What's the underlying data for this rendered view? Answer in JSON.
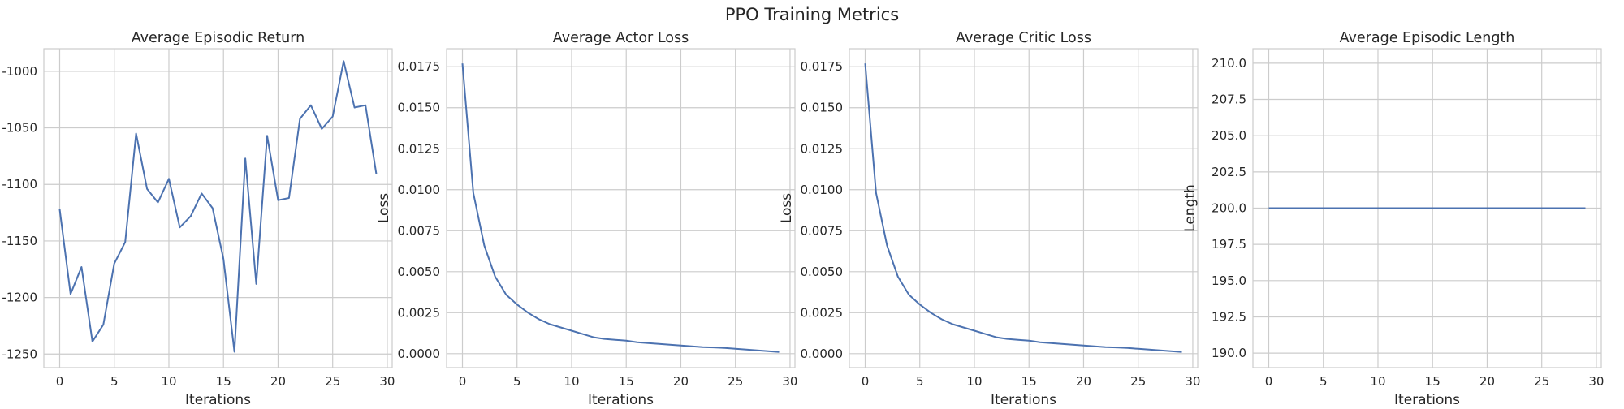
{
  "figure": {
    "title": "PPO Training Metrics"
  },
  "colors": {
    "series": "#4c72b0",
    "grid": "#cccccc",
    "text": "#262626"
  },
  "chart_data": [
    {
      "type": "line",
      "title": "Average Episodic Return",
      "xlabel": "Iterations",
      "ylabel": "",
      "xlim": [
        -1.45,
        30.45
      ],
      "ylim": [
        -1262,
        -980
      ],
      "xticks": [
        0,
        5,
        10,
        15,
        20,
        25,
        30
      ],
      "yticks": [
        -1250,
        -1200,
        -1150,
        -1100,
        -1050,
        -1000
      ],
      "grid": true,
      "x": [
        0,
        1,
        2,
        3,
        4,
        5,
        6,
        7,
        8,
        9,
        10,
        11,
        12,
        13,
        14,
        15,
        16,
        17,
        18,
        19,
        20,
        21,
        22,
        23,
        24,
        25,
        26,
        27,
        28,
        29
      ],
      "values": [
        -1122,
        -1197,
        -1173,
        -1239,
        -1224,
        -1170,
        -1151,
        -1055,
        -1104,
        -1116,
        -1095,
        -1138,
        -1128,
        -1108,
        -1121,
        -1166,
        -1248,
        -1077,
        -1188,
        -1057,
        -1114,
        -1112,
        -1042,
        -1030,
        -1051,
        -1040,
        -991,
        -1032,
        -1030,
        -1091
      ]
    },
    {
      "type": "line",
      "title": "Average Actor Loss",
      "xlabel": "Iterations",
      "ylabel": "Loss",
      "xlim": [
        -1.45,
        30.45
      ],
      "ylim": [
        -0.00085,
        0.0186
      ],
      "xticks": [
        0,
        5,
        10,
        15,
        20,
        25,
        30
      ],
      "yticks": [
        0.0,
        0.0025,
        0.005,
        0.0075,
        0.01,
        0.0125,
        0.015,
        0.0175
      ],
      "ytick_labels": [
        "0.0000",
        "0.0025",
        "0.0050",
        "0.0075",
        "0.0100",
        "0.0125",
        "0.0150",
        "0.0175"
      ],
      "grid": true,
      "x": [
        0,
        1,
        2,
        3,
        4,
        5,
        6,
        7,
        8,
        9,
        10,
        11,
        12,
        13,
        14,
        15,
        16,
        17,
        18,
        19,
        20,
        21,
        22,
        23,
        24,
        25,
        26,
        27,
        28,
        29
      ],
      "values": [
        0.0177,
        0.0098,
        0.0066,
        0.0047,
        0.0036,
        0.003,
        0.0025,
        0.0021,
        0.0018,
        0.0016,
        0.0014,
        0.0012,
        0.001,
        0.0009,
        0.00085,
        0.0008,
        0.0007,
        0.00065,
        0.0006,
        0.00055,
        0.0005,
        0.00045,
        0.0004,
        0.00038,
        0.00035,
        0.0003,
        0.00025,
        0.0002,
        0.00015,
        0.0001
      ]
    },
    {
      "type": "line",
      "title": "Average Critic Loss",
      "xlabel": "Iterations",
      "ylabel": "Loss",
      "xlim": [
        -1.45,
        30.45
      ],
      "ylim": [
        -0.00085,
        0.0186
      ],
      "xticks": [
        0,
        5,
        10,
        15,
        20,
        25,
        30
      ],
      "yticks": [
        0.0,
        0.0025,
        0.005,
        0.0075,
        0.01,
        0.0125,
        0.015,
        0.0175
      ],
      "ytick_labels": [
        "0.0000",
        "0.0025",
        "0.0050",
        "0.0075",
        "0.0100",
        "0.0125",
        "0.0150",
        "0.0175"
      ],
      "grid": true,
      "x": [
        0,
        1,
        2,
        3,
        4,
        5,
        6,
        7,
        8,
        9,
        10,
        11,
        12,
        13,
        14,
        15,
        16,
        17,
        18,
        19,
        20,
        21,
        22,
        23,
        24,
        25,
        26,
        27,
        28,
        29
      ],
      "values": [
        0.0177,
        0.0098,
        0.0066,
        0.0047,
        0.0036,
        0.003,
        0.0025,
        0.0021,
        0.0018,
        0.0016,
        0.0014,
        0.0012,
        0.001,
        0.0009,
        0.00085,
        0.0008,
        0.0007,
        0.00065,
        0.0006,
        0.00055,
        0.0005,
        0.00045,
        0.0004,
        0.00038,
        0.00035,
        0.0003,
        0.00025,
        0.0002,
        0.00015,
        0.0001
      ]
    },
    {
      "type": "line",
      "title": "Average Episodic Length",
      "xlabel": "Iterations",
      "ylabel": "Length",
      "xlim": [
        -1.45,
        30.45
      ],
      "ylim": [
        189,
        211
      ],
      "xticks": [
        0,
        5,
        10,
        15,
        20,
        25,
        30
      ],
      "yticks": [
        190.0,
        192.5,
        195.0,
        197.5,
        200.0,
        202.5,
        205.0,
        207.5,
        210.0
      ],
      "ytick_labels": [
        "190.0",
        "192.5",
        "195.0",
        "197.5",
        "200.0",
        "202.5",
        "205.0",
        "207.5",
        "210.0"
      ],
      "grid": true,
      "x": [
        0,
        1,
        2,
        3,
        4,
        5,
        6,
        7,
        8,
        9,
        10,
        11,
        12,
        13,
        14,
        15,
        16,
        17,
        18,
        19,
        20,
        21,
        22,
        23,
        24,
        25,
        26,
        27,
        28,
        29
      ],
      "values": [
        200,
        200,
        200,
        200,
        200,
        200,
        200,
        200,
        200,
        200,
        200,
        200,
        200,
        200,
        200,
        200,
        200,
        200,
        200,
        200,
        200,
        200,
        200,
        200,
        200,
        200,
        200,
        200,
        200,
        200
      ]
    }
  ]
}
